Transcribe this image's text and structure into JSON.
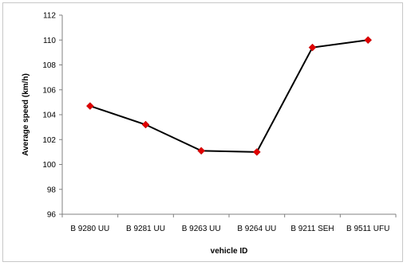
{
  "chart_data": {
    "type": "line",
    "title": "",
    "xlabel": "vehicle ID",
    "ylabel": "Average speed (km/h)",
    "categories": [
      "B 9280 UU",
      "B 9281 UU",
      "B 9263 UU",
      "B 9264 UU",
      "B 9211 SEH",
      "B 9511 UFU"
    ],
    "series": [
      {
        "values": [
          104.7,
          103.2,
          101.1,
          101.0,
          109.4,
          110.0
        ]
      }
    ],
    "ylim": [
      96,
      112
    ],
    "yticks": [
      96,
      98,
      100,
      102,
      104,
      106,
      108,
      110,
      112
    ],
    "grid": false,
    "legend": "none",
    "line_color": "#000000",
    "marker_color": "#e00000",
    "marker": "diamond"
  }
}
